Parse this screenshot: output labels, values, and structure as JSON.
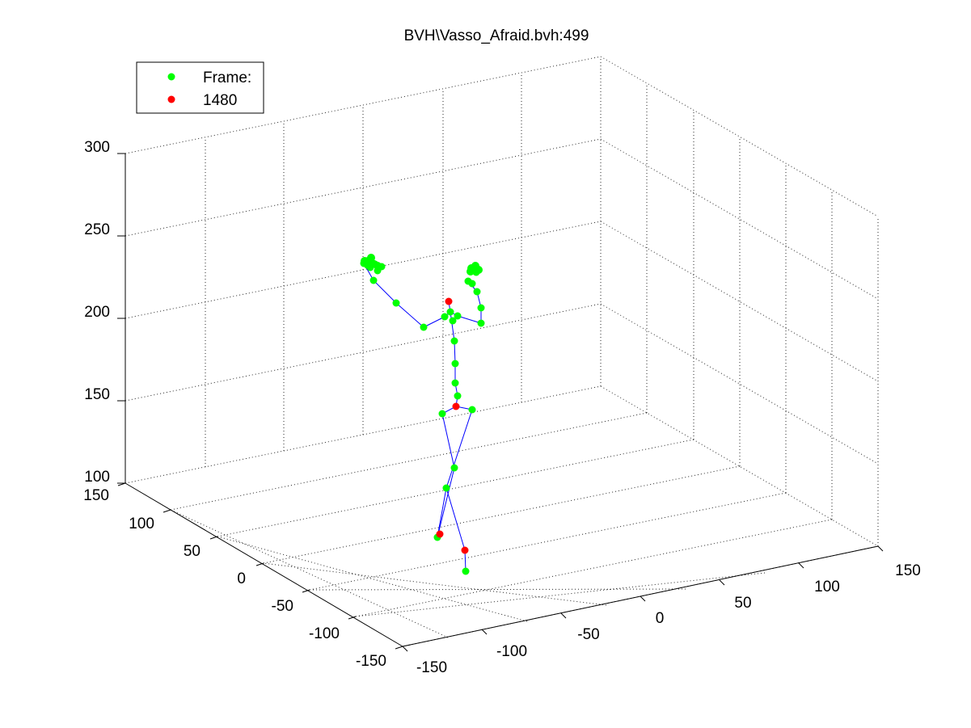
{
  "chart_data": {
    "type": "scatter",
    "title": "BVH\\Vasso_Afraid.bvh:499",
    "z_ticks": [
      "100",
      "150",
      "200",
      "250",
      "300"
    ],
    "y_ticks": [
      "150",
      "100",
      "50",
      "0",
      "-50",
      "-100",
      "-150"
    ],
    "x_ticks": [
      "-150",
      "-100",
      "-50",
      "0",
      "50",
      "100",
      "150"
    ],
    "zlim": [
      100,
      300
    ],
    "ylim": [
      -150,
      150
    ],
    "xlim": [
      -150,
      150
    ],
    "grid": true,
    "legend_position": "top-left",
    "legend": [
      {
        "label": "Frame:",
        "color": "#00ff00"
      },
      {
        "label": "1480",
        "color": "#ff0000"
      }
    ],
    "colors": {
      "joint": "#00ff00",
      "end_site": "#ff0000",
      "bone": "#0000ff"
    }
  }
}
